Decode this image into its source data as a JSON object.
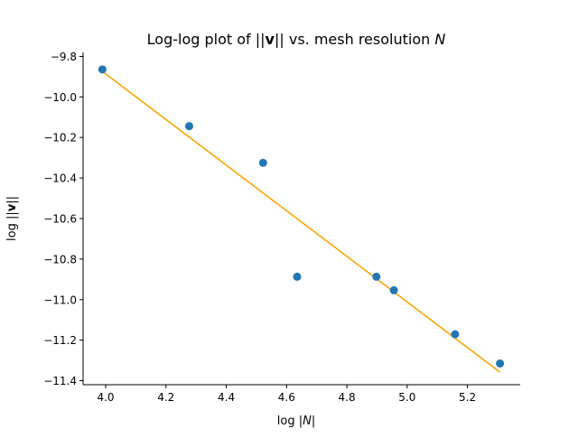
{
  "chart_data": {
    "type": "scatter",
    "title_parts": [
      "Log-log plot of ||",
      "v",
      "|| vs. mesh resolution ",
      "N"
    ],
    "xlabel_parts": [
      "log |",
      "N",
      "|"
    ],
    "ylabel_parts": [
      "log ||",
      "v",
      "||"
    ],
    "xlim": [
      3.925,
      5.375
    ],
    "ylim": [
      -11.42,
      -9.78
    ],
    "xticks": [
      4.0,
      4.2,
      4.4,
      4.6,
      4.8,
      5.0,
      5.2
    ],
    "xtick_labels": [
      "4.0",
      "4.2",
      "4.4",
      "4.6",
      "4.8",
      "5.0",
      "5.2"
    ],
    "yticks": [
      -9.8,
      -10.0,
      -10.2,
      -10.4,
      -10.6,
      -10.8,
      -11.0,
      -11.2,
      -11.4
    ],
    "ytick_labels": [
      "−9.8",
      "−10.0",
      "−10.2",
      "−10.4",
      "−10.6",
      "−10.8",
      "−11.0",
      "−11.2",
      "−11.4"
    ],
    "grid": false,
    "scatter": {
      "color": "#1f77b4",
      "x": [
        3.989,
        4.277,
        4.522,
        4.635,
        4.898,
        4.956,
        5.159,
        5.308
      ],
      "y": [
        -9.864,
        -10.144,
        -10.325,
        -10.887,
        -10.887,
        -10.954,
        -11.171,
        -11.315
      ]
    },
    "fit_line": {
      "color": "#ffa500",
      "x": [
        3.989,
        5.308
      ],
      "y": [
        -9.874,
        -11.358
      ]
    }
  }
}
